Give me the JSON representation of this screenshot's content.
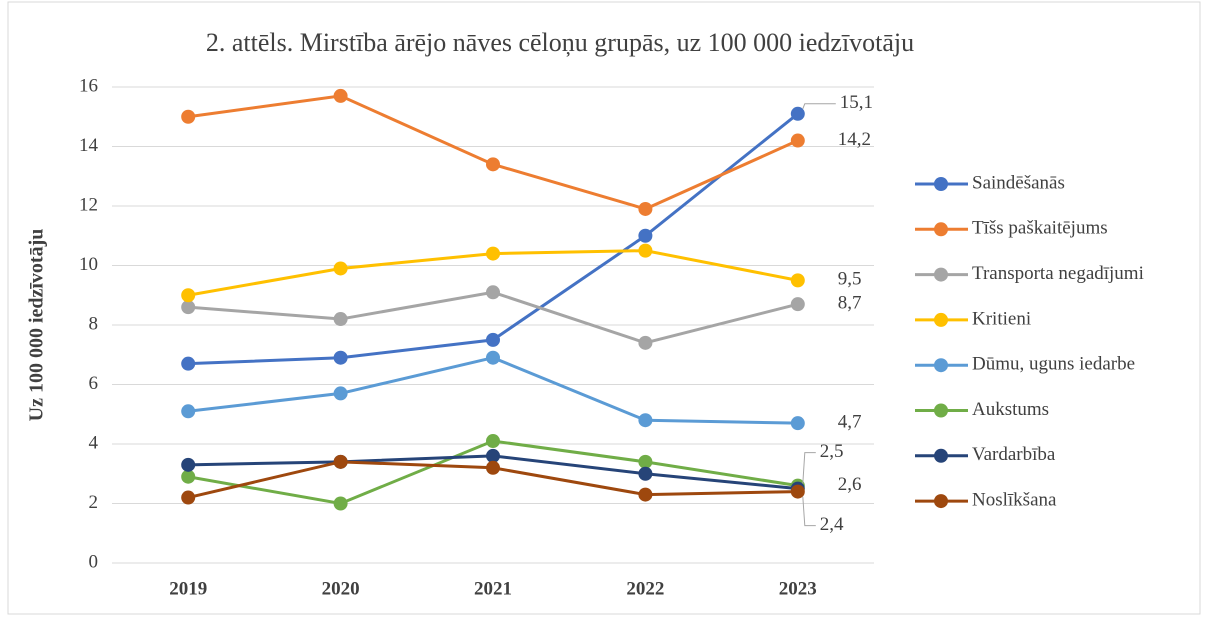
{
  "chart_data": {
    "type": "line",
    "title": "2. attēls. Mirstība ārējo nāves cēloņu grupās, uz 100 000 iedzīvotāju",
    "y_label": "Uz 100 000 iedzīvotāju",
    "categories": [
      "2019",
      "2020",
      "2021",
      "2022",
      "2023"
    ],
    "ylim": [
      0,
      16
    ],
    "yticks": [
      0,
      2,
      4,
      6,
      8,
      10,
      12,
      14,
      16
    ],
    "grid": true,
    "legend": "right",
    "series": [
      {
        "name": "Saindēšanās",
        "color": "#4472c4",
        "values": [
          6.7,
          6.9,
          7.5,
          11.0,
          15.1
        ],
        "value_labels": [
          null,
          null,
          null,
          null,
          "15,1"
        ]
      },
      {
        "name": "Tīšs paškaitējums",
        "color": "#ed7d31",
        "values": [
          15.0,
          15.7,
          13.4,
          11.9,
          14.2
        ],
        "value_labels": [
          null,
          null,
          null,
          null,
          "14,2"
        ]
      },
      {
        "name": "Transporta negadījumi",
        "color": "#a5a5a5",
        "values": [
          8.6,
          8.2,
          9.1,
          7.4,
          8.7
        ],
        "value_labels": [
          null,
          null,
          null,
          null,
          "8,7"
        ]
      },
      {
        "name": "Kritieni",
        "color": "#ffc000",
        "values": [
          9.0,
          9.9,
          10.4,
          10.5,
          9.5
        ],
        "value_labels": [
          null,
          null,
          null,
          null,
          "9,5"
        ]
      },
      {
        "name": "Dūmu, uguns iedarbe",
        "color": "#5b9bd5",
        "values": [
          5.1,
          5.7,
          6.9,
          4.8,
          4.7
        ],
        "value_labels": [
          null,
          null,
          null,
          null,
          "4,7"
        ]
      },
      {
        "name": "Aukstums",
        "color": "#70ad47",
        "values": [
          2.9,
          2.0,
          4.1,
          3.4,
          2.6
        ],
        "value_labels": [
          null,
          null,
          null,
          null,
          "2,6"
        ]
      },
      {
        "name": "Vardarbība",
        "color": "#264478",
        "values": [
          3.3,
          3.4,
          3.6,
          3.0,
          2.5
        ],
        "value_labels": [
          null,
          null,
          null,
          null,
          "2,5"
        ]
      },
      {
        "name": "Noslīkšana",
        "color": "#9e480e",
        "values": [
          2.2,
          3.4,
          3.2,
          2.3,
          2.4
        ],
        "value_labels": [
          null,
          null,
          null,
          null,
          "2,4"
        ]
      }
    ]
  }
}
